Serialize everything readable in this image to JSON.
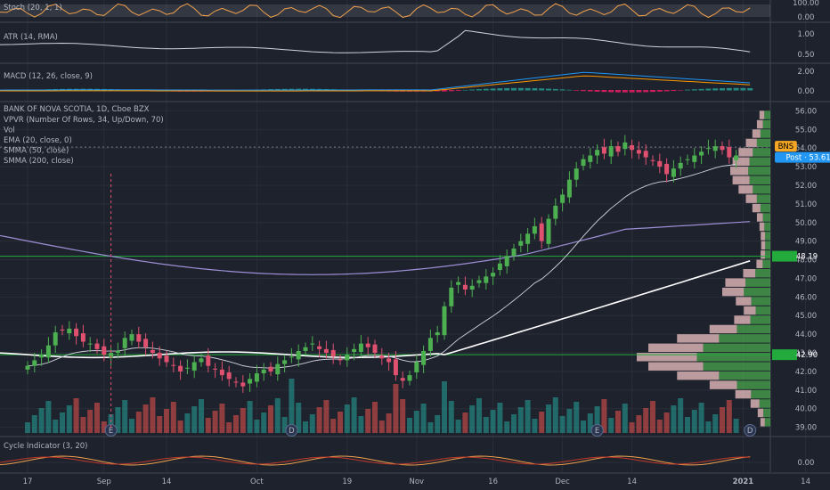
{
  "chart_data": {
    "type": "candlestick",
    "symbol_title": "BANK OF NOVA SCOTIA, 1D, Cboe BZX",
    "indicators": {
      "stoch": {
        "label": "Stoch (20, 1, 1)",
        "ticks": [
          "100.00",
          "0.00"
        ]
      },
      "atr": {
        "label": "ATR (14, RMA)",
        "ticks": [
          "1.00",
          "0.50"
        ]
      },
      "macd": {
        "label": "MACD (12, 26, close, 9)",
        "ticks": [
          "2.00",
          "0.00"
        ]
      },
      "cycle": {
        "label": "Cycle Indicator (3, 20)",
        "ticks": [
          "0.00"
        ]
      }
    },
    "overlay_labels": [
      "VPVR (Number Of Rows, 34, Up/Down, 70)",
      "Vol",
      "EMA (20, close, 0)",
      "SMMA (50, close)",
      "SMMA (200, close)"
    ],
    "price_ticks": [
      "56.00",
      "55.00",
      "54.00",
      "53.00",
      "52.00",
      "51.00",
      "50.00",
      "49.00",
      "48.00",
      "47.00",
      "46.00",
      "45.00",
      "44.00",
      "43.00",
      "42.00",
      "41.00",
      "40.00",
      "39.00"
    ],
    "ylim": [
      38.6,
      56.4
    ],
    "x_labels": [
      {
        "text": "17",
        "day": 0
      },
      {
        "text": "Sep",
        "day": 11
      },
      {
        "text": "14",
        "day": 20
      },
      {
        "text": "Oct",
        "day": 33
      },
      {
        "text": "19",
        "day": 46
      },
      {
        "text": "Nov",
        "day": 56
      },
      {
        "text": "16",
        "day": 67
      },
      {
        "text": "Dec",
        "day": 77
      },
      {
        "text": "14",
        "day": 87
      },
      {
        "text": "2021",
        "day": 103
      },
      {
        "text": "14",
        "day": 112
      }
    ],
    "horizontal_levels": [
      {
        "price": 48.19,
        "label": "48.19",
        "color": "#22ab3c"
      },
      {
        "price": 42.9,
        "label": "42.90",
        "color": "#22ab3c"
      }
    ],
    "badges": [
      {
        "text": "BNS",
        "price": 54.05,
        "color": "#f5a623"
      },
      {
        "text": "Post · 53.61",
        "price": 53.45,
        "color": "#2196f3"
      }
    ],
    "events": [
      {
        "text": "E",
        "day": 12
      },
      {
        "text": "D",
        "day": 38
      },
      {
        "text": "E",
        "day": 82
      },
      {
        "text": "D",
        "day": 104
      }
    ],
    "candles_close": [
      42.3,
      42.6,
      42.9,
      43.4,
      44.1,
      44.2,
      44.3,
      43.9,
      43.6,
      43.5,
      43.2,
      42.9,
      43.0,
      43.1,
      43.8,
      44.0,
      43.6,
      43.3,
      43.0,
      42.7,
      42.5,
      42.3,
      42.0,
      42.2,
      42.5,
      42.7,
      42.3,
      42.1,
      41.8,
      41.6,
      41.4,
      41.2,
      41.6,
      41.9,
      42.1,
      42.0,
      42.4,
      42.6,
      42.8,
      43.1,
      43.3,
      43.5,
      43.2,
      43.0,
      42.8,
      42.6,
      42.9,
      43.2,
      43.5,
      43.3,
      43.0,
      42.7,
      42.5,
      41.8,
      41.5,
      41.8,
      42.5,
      43.1,
      43.8,
      44.1,
      45.5,
      46.5,
      46.8,
      46.4,
      46.6,
      46.9,
      47.1,
      47.3,
      47.8,
      48.2,
      48.6,
      49.0,
      49.4,
      49.8,
      49.0,
      50.2,
      50.9,
      51.5,
      52.3,
      52.9,
      53.4,
      53.6,
      53.9,
      53.7,
      54.1,
      53.8,
      54.3,
      53.9,
      53.7,
      53.5,
      53.3,
      53.0,
      52.6,
      52.9,
      53.2,
      53.4,
      53.6,
      53.8,
      54.0,
      54.1,
      53.9,
      53.5,
      53.6
    ],
    "volume_hint": "per-bar volume histogram, lower pane"
  }
}
